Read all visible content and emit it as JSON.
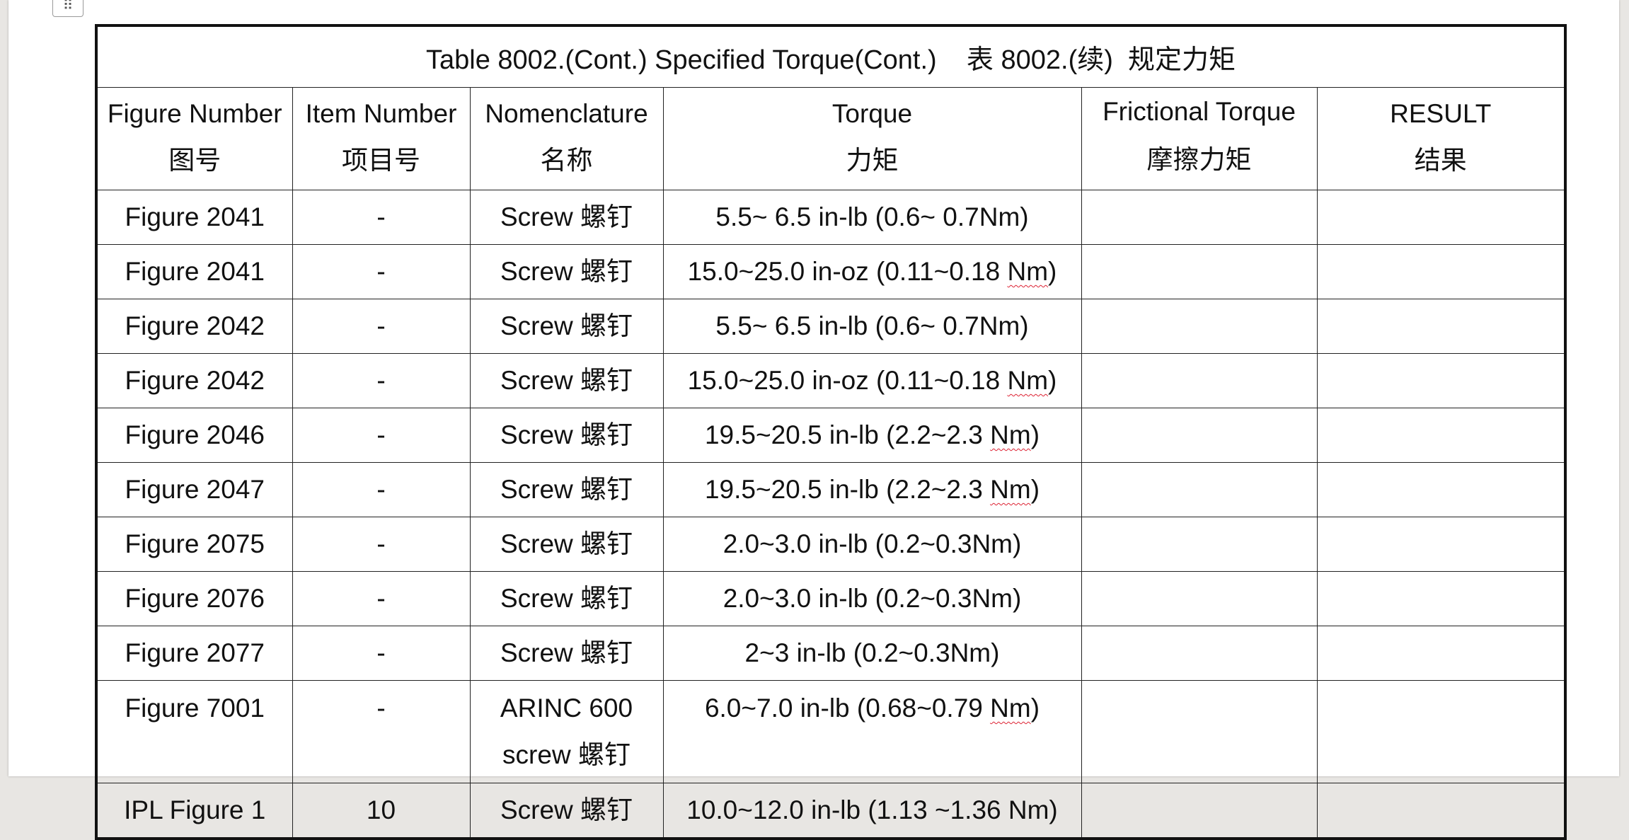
{
  "table": {
    "title": "Table 8002.(Cont.) Specified Torque(Cont.)    表 8002.(续)  规定力矩",
    "headers": [
      {
        "en": "Figure Number",
        "cn": "图号"
      },
      {
        "en": "Item Number",
        "cn": "项目号"
      },
      {
        "en": "Nomenclature",
        "cn": "名称"
      },
      {
        "en": "Torque",
        "cn": "力矩"
      },
      {
        "en": "Frictional Torque",
        "cn": "摩擦力矩"
      },
      {
        "en": "RESULT",
        "cn": "结果"
      }
    ],
    "rows": [
      {
        "figure": "Figure 2041",
        "item": "-",
        "name": "Screw 螺钉",
        "name2": "",
        "torque_a": "5.5~ 6.5 in-lb (0.6~ 0.7Nm)",
        "torque_unit": "",
        "torque_b": "",
        "frictional": "",
        "result": ""
      },
      {
        "figure": "Figure 2041",
        "item": "-",
        "name": "Screw 螺钉",
        "name2": "",
        "torque_a": "15.0~25.0 in-oz (0.11~0.18 ",
        "torque_unit": "Nm",
        "torque_b": ")",
        "frictional": "",
        "result": ""
      },
      {
        "figure": "Figure 2042",
        "item": "-",
        "name": "Screw 螺钉",
        "name2": "",
        "torque_a": "5.5~ 6.5 in-lb (0.6~ 0.7Nm)",
        "torque_unit": "",
        "torque_b": "",
        "frictional": "",
        "result": ""
      },
      {
        "figure": "Figure 2042",
        "item": "-",
        "name": "Screw 螺钉",
        "name2": "",
        "torque_a": "15.0~25.0 in-oz (0.11~0.18 ",
        "torque_unit": "Nm",
        "torque_b": ")",
        "frictional": "",
        "result": ""
      },
      {
        "figure": "Figure 2046",
        "item": "-",
        "name": "Screw 螺钉",
        "name2": "",
        "torque_a": "19.5~20.5 in-lb (2.2~2.3 ",
        "torque_unit": "Nm",
        "torque_b": ")",
        "frictional": "",
        "result": ""
      },
      {
        "figure": "Figure 2047",
        "item": "-",
        "name": "Screw 螺钉",
        "name2": "",
        "torque_a": "19.5~20.5 in-lb (2.2~2.3 ",
        "torque_unit": "Nm",
        "torque_b": ")",
        "frictional": "",
        "result": ""
      },
      {
        "figure": "Figure 2075",
        "item": "-",
        "name": "Screw 螺钉",
        "name2": "",
        "torque_a": "2.0~3.0 in-lb (0.2~0.3Nm)",
        "torque_unit": "",
        "torque_b": "",
        "frictional": "",
        "result": ""
      },
      {
        "figure": "Figure 2076",
        "item": "-",
        "name": "Screw 螺钉",
        "name2": "",
        "torque_a": "2.0~3.0 in-lb (0.2~0.3Nm)",
        "torque_unit": "",
        "torque_b": "",
        "frictional": "",
        "result": ""
      },
      {
        "figure": "Figure 2077",
        "item": "-",
        "name": "Screw 螺钉",
        "name2": "",
        "torque_a": "2~3 in-lb (0.2~0.3Nm)",
        "torque_unit": "",
        "torque_b": "",
        "frictional": "",
        "result": ""
      },
      {
        "figure": "Figure 7001",
        "item": "-",
        "name": "ARINC 600",
        "name2": "screw 螺钉",
        "torque_a": "6.0~7.0 in-lb (0.68~0.79 ",
        "torque_unit": "Nm",
        "torque_b": ")",
        "frictional": "",
        "result": ""
      },
      {
        "figure": "IPL Figure 1",
        "item": "10",
        "name": "Screw 螺钉",
        "name2": "",
        "torque_a": "10.0~12.0 in-lb (1.13 ~1.36 Nm)",
        "torque_unit": "",
        "torque_b": "",
        "frictional": "",
        "result": ""
      }
    ]
  }
}
